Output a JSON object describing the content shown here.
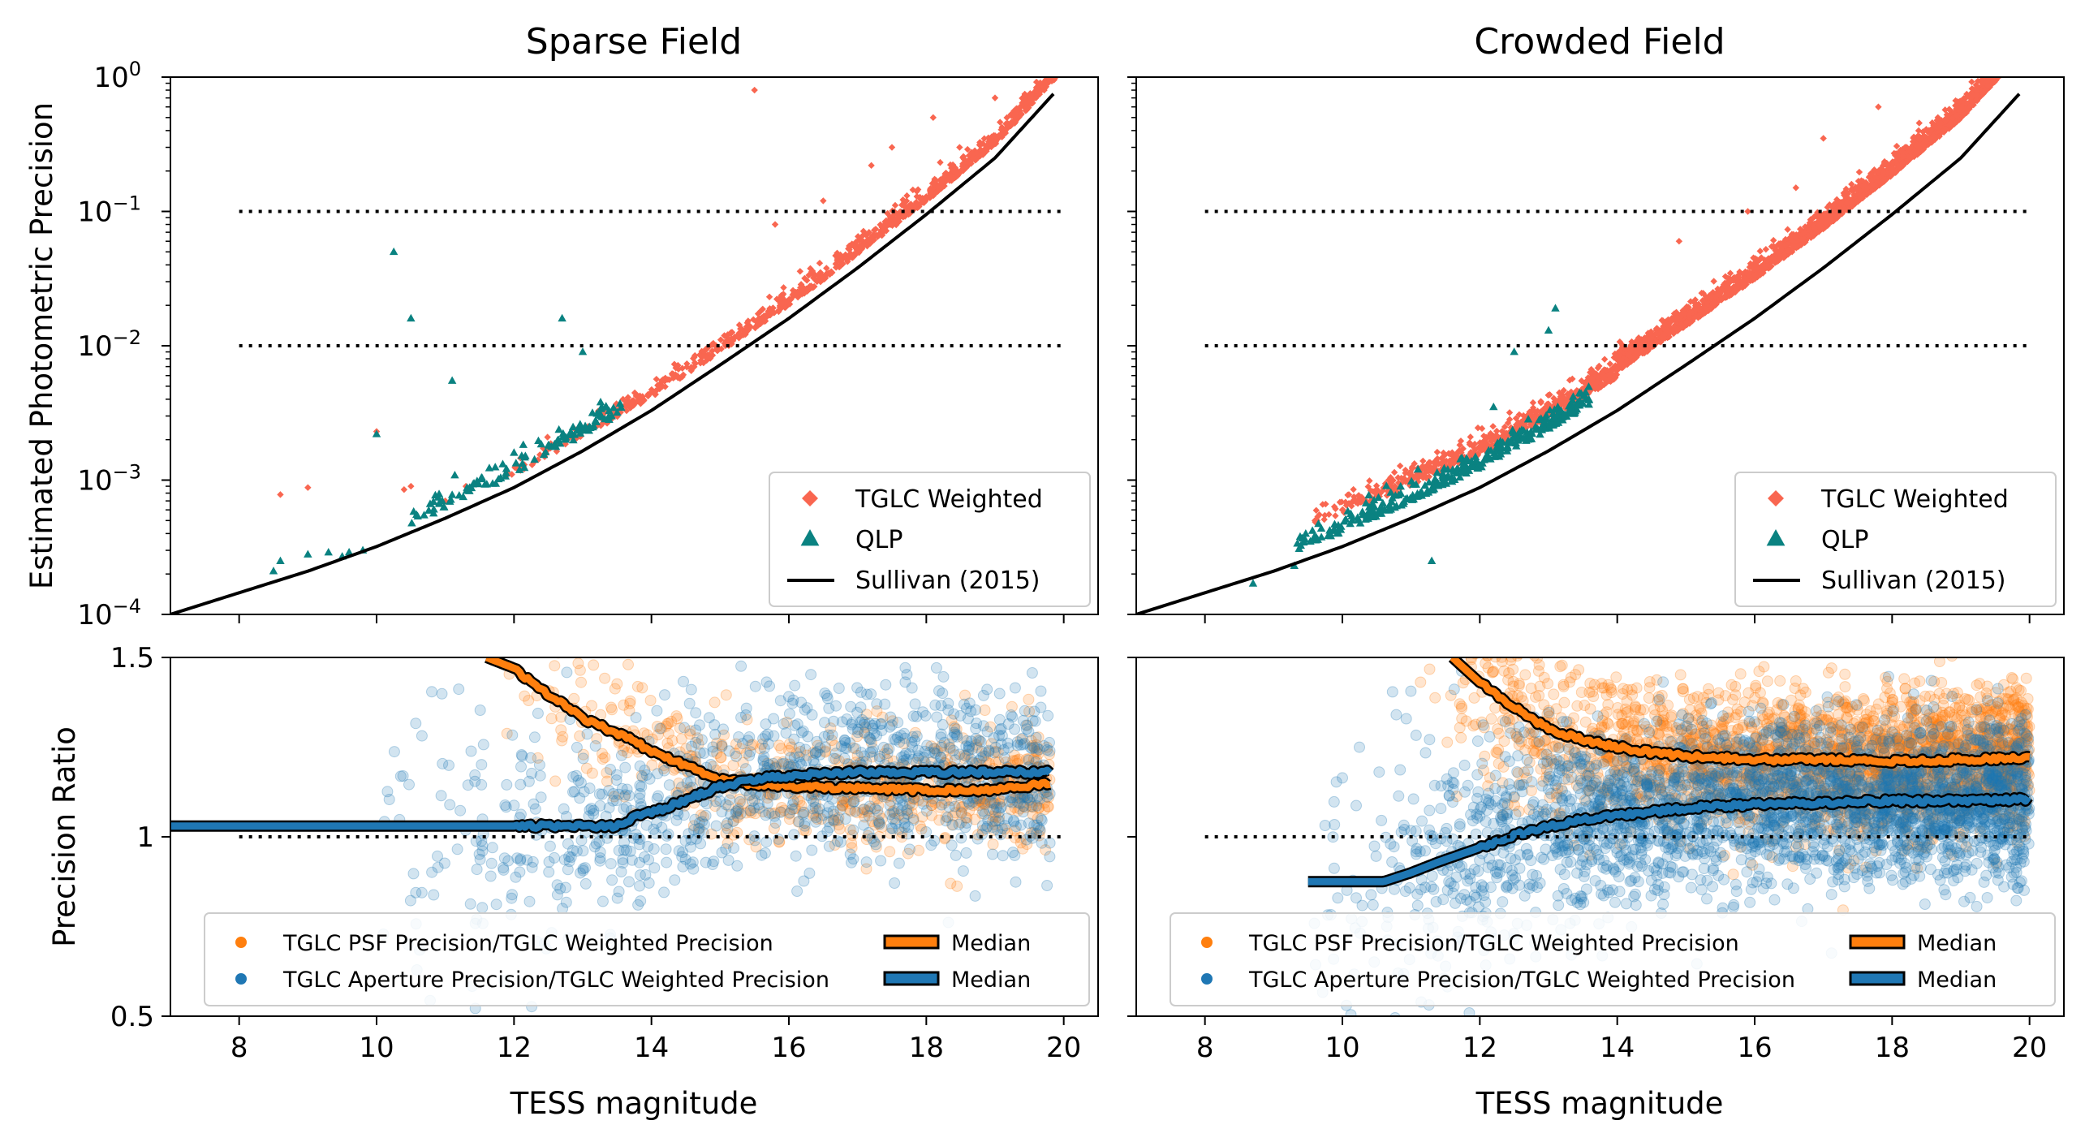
{
  "colors": {
    "tglc_weighted": "#f96650",
    "qlp": "#0a8281",
    "sullivan": "#000000",
    "psf_ratio": "#ff7f0e",
    "aperture_ratio": "#1f77b4",
    "median_edge": "#000000"
  },
  "chart_data": [
    {
      "id": "sparse_top",
      "type": "scatter",
      "title": "Sparse Field",
      "xlabel": "",
      "ylabel": "Estimated Photometric Precision",
      "xlim": [
        7,
        20.5
      ],
      "ylim": [
        0.0001,
        1
      ],
      "yscale": "log",
      "yticks": [
        {
          "value": 1,
          "label": "10",
          "exp": "0"
        },
        {
          "value": 0.1,
          "label": "10",
          "exp": "−1"
        },
        {
          "value": 0.01,
          "label": "10",
          "exp": "−2"
        },
        {
          "value": 0.001,
          "label": "10",
          "exp": "−3"
        },
        {
          "value": 0.0001,
          "label": "10",
          "exp": "−4"
        }
      ],
      "hlines": [
        {
          "y": 0.1,
          "x": [
            8,
            20
          ]
        },
        {
          "y": 0.01,
          "x": [
            8,
            20
          ]
        }
      ],
      "legend": {
        "location": "lower-right",
        "entries": [
          {
            "marker": "diamond",
            "label": "TGLC Weighted"
          },
          {
            "marker": "triangle",
            "label": "QLP"
          },
          {
            "marker": "line",
            "label": "Sullivan (2015)"
          }
        ]
      },
      "series": [
        {
          "name": "Sullivan (2015)",
          "kind": "line",
          "points": [
            [
              7,
              0.0001
            ],
            [
              8,
              0.000145
            ],
            [
              9,
              0.00021
            ],
            [
              10,
              0.00032
            ],
            [
              11,
              0.00052
            ],
            [
              12,
              0.00088
            ],
            [
              13,
              0.00165
            ],
            [
              14,
              0.0033
            ],
            [
              15,
              0.0072
            ],
            [
              16,
              0.016
            ],
            [
              17,
              0.038
            ],
            [
              18,
              0.095
            ],
            [
              19,
              0.25
            ],
            [
              19.9,
              0.8
            ]
          ]
        },
        {
          "name": "TGLC Weighted",
          "kind": "scatter",
          "range": [
            11.5,
            19.9
          ],
          "count": 900,
          "spread": 1.25,
          "outliers": [
            [
              8.6,
              0.00078
            ],
            [
              9.0,
              0.00088
            ],
            [
              10.0,
              0.0023
            ],
            [
              10.4,
              0.00085
            ],
            [
              10.5,
              0.0009
            ],
            [
              11.0,
              0.0007
            ],
            [
              11.3,
              0.0009
            ],
            [
              15.8,
              0.08
            ],
            [
              16.5,
              0.12
            ],
            [
              17.5,
              0.3
            ],
            [
              17.2,
              0.22
            ],
            [
              18.1,
              0.5
            ],
            [
              19.0,
              0.7
            ],
            [
              15.5,
              0.8
            ],
            [
              18.5,
              0.2
            ]
          ]
        },
        {
          "name": "QLP",
          "kind": "scatter",
          "range": [
            10.3,
            13.6
          ],
          "count": 120,
          "spread": 1.15,
          "outliers": [
            [
              8.5,
              0.00021
            ],
            [
              8.6,
              0.00025
            ],
            [
              9.0,
              0.00028
            ],
            [
              9.3,
              0.00029
            ],
            [
              9.5,
              0.00027
            ],
            [
              9.6,
              0.00029
            ],
            [
              9.8,
              0.0003
            ],
            [
              10.0,
              0.0022
            ],
            [
              10.25,
              0.05
            ],
            [
              10.5,
              0.016
            ],
            [
              11.1,
              0.0055
            ],
            [
              12.7,
              0.016
            ],
            [
              13.0,
              0.009
            ],
            [
              12.0,
              0.0016
            ]
          ]
        }
      ]
    },
    {
      "id": "crowded_top",
      "type": "scatter",
      "title": "Crowded Field",
      "xlabel": "",
      "ylabel": "",
      "xlim": [
        7,
        20.5
      ],
      "ylim": [
        0.0001,
        1
      ],
      "yscale": "log",
      "hlines": [
        {
          "y": 0.1,
          "x": [
            8,
            20
          ]
        },
        {
          "y": 0.01,
          "x": [
            8,
            20
          ]
        }
      ],
      "legend": {
        "location": "lower-right",
        "entries": [
          {
            "marker": "diamond",
            "label": "TGLC Weighted"
          },
          {
            "marker": "triangle",
            "label": "QLP"
          },
          {
            "marker": "line",
            "label": "Sullivan (2015)"
          }
        ]
      },
      "series": [
        {
          "name": "Sullivan (2015)",
          "kind": "line",
          "points": [
            [
              7,
              0.0001
            ],
            [
              8,
              0.000145
            ],
            [
              9,
              0.00021
            ],
            [
              10,
              0.00032
            ],
            [
              11,
              0.00052
            ],
            [
              12,
              0.00088
            ],
            [
              13,
              0.00165
            ],
            [
              14,
              0.0033
            ],
            [
              15,
              0.0072
            ],
            [
              16,
              0.016
            ],
            [
              17,
              0.038
            ],
            [
              18,
              0.095
            ],
            [
              19,
              0.25
            ],
            [
              19.9,
              0.8
            ]
          ]
        },
        {
          "name": "TGLC Weighted",
          "kind": "scatter",
          "range": [
            9.5,
            20.0
          ],
          "count": 2600,
          "spread": 1.7,
          "outliers": [
            [
              15.9,
              0.1
            ],
            [
              16.6,
              0.15
            ],
            [
              17.0,
              0.35
            ],
            [
              17.8,
              0.6
            ],
            [
              9.6,
              0.0005
            ],
            [
              10.0,
              0.0006
            ],
            [
              14.9,
              0.06
            ]
          ]
        },
        {
          "name": "QLP",
          "kind": "scatter",
          "range": [
            9.3,
            13.6
          ],
          "count": 340,
          "spread": 1.25,
          "outliers": [
            [
              8.7,
              0.00017
            ],
            [
              9.3,
              0.00023
            ],
            [
              11.1,
              0.0012
            ],
            [
              12.2,
              0.0035
            ],
            [
              12.5,
              0.009
            ],
            [
              13.0,
              0.013
            ],
            [
              13.1,
              0.019
            ],
            [
              11.3,
              0.00025
            ]
          ]
        }
      ]
    },
    {
      "id": "sparse_bottom",
      "type": "scatter",
      "title": "",
      "xlabel": "TESS magnitude",
      "ylabel": "Precision Ratio",
      "xlim": [
        7,
        20.5
      ],
      "ylim": [
        0.5,
        1.5
      ],
      "yscale": "linear",
      "xticks": [
        8,
        10,
        12,
        14,
        16,
        18,
        20
      ],
      "yticks": [
        {
          "value": 1.5,
          "label": "1.5"
        },
        {
          "value": 1,
          "label": "1"
        },
        {
          "value": 0.5,
          "label": "0.5"
        }
      ],
      "hlines": [
        {
          "y": 1.0,
          "x": [
            8,
            20
          ]
        }
      ],
      "legend": {
        "location": "lower",
        "entries": [
          {
            "marker": "dot-orange",
            "label": "TGLC PSF Precision/TGLC Weighted Precision"
          },
          {
            "marker": "dot-blue",
            "label": "TGLC Aperture Precision/TGLC Weighted Precision"
          },
          {
            "marker": "band-orange",
            "label": "Median"
          },
          {
            "marker": "band-blue",
            "label": "Median"
          }
        ]
      },
      "series": [
        {
          "name": "TGLC PSF Precision/TGLC Weighted Precision",
          "kind": "scatter",
          "range": [
            11.5,
            19.8
          ],
          "count": 700
        },
        {
          "name": "TGLC Aperture Precision/TGLC Weighted Precision",
          "kind": "scatter",
          "range": [
            10.0,
            19.8
          ],
          "count": 1100
        },
        {
          "name": "Median (PSF)",
          "kind": "median",
          "points": [
            [
              11.6,
              1.5
            ],
            [
              12.0,
              1.47
            ],
            [
              12.4,
              1.41
            ],
            [
              13.0,
              1.33
            ],
            [
              13.6,
              1.28
            ],
            [
              14.0,
              1.24
            ],
            [
              14.6,
              1.19
            ],
            [
              15.0,
              1.16
            ],
            [
              15.5,
              1.145
            ],
            [
              16.0,
              1.14
            ],
            [
              17.0,
              1.135
            ],
            [
              18.0,
              1.13
            ],
            [
              19.0,
              1.13
            ],
            [
              19.8,
              1.15
            ]
          ]
        },
        {
          "name": "Median (Aperture)",
          "kind": "median",
          "points": [
            [
              7,
              1.03
            ],
            [
              13.5,
              1.03
            ],
            [
              13.8,
              1.06
            ],
            [
              14.2,
              1.08
            ],
            [
              14.6,
              1.11
            ],
            [
              15.0,
              1.14
            ],
            [
              15.5,
              1.16
            ],
            [
              16.0,
              1.17
            ],
            [
              17.0,
              1.18
            ],
            [
              18.0,
              1.18
            ],
            [
              19.8,
              1.18
            ]
          ]
        }
      ]
    },
    {
      "id": "crowded_bottom",
      "type": "scatter",
      "title": "",
      "xlabel": "TESS magnitude",
      "ylabel": "",
      "xlim": [
        7,
        20.5
      ],
      "ylim": [
        0.5,
        1.5
      ],
      "yscale": "linear",
      "xticks": [
        8,
        10,
        12,
        14,
        16,
        18,
        20
      ],
      "hlines": [
        {
          "y": 1.0,
          "x": [
            8,
            20
          ]
        }
      ],
      "legend": {
        "location": "lower",
        "entries": [
          {
            "marker": "dot-orange",
            "label": "TGLC PSF Precision/TGLC Weighted Precision"
          },
          {
            "marker": "dot-blue",
            "label": "TGLC Aperture Precision/TGLC Weighted Precision"
          },
          {
            "marker": "band-orange",
            "label": "Median"
          },
          {
            "marker": "band-blue",
            "label": "Median"
          }
        ]
      },
      "series": [
        {
          "name": "TGLC PSF Precision/TGLC Weighted Precision",
          "kind": "scatter",
          "range": [
            11.0,
            20.0
          ],
          "count": 2400
        },
        {
          "name": "TGLC Aperture Precision/TGLC Weighted Precision",
          "kind": "scatter",
          "range": [
            9.5,
            20.0
          ],
          "count": 2800
        },
        {
          "name": "Median (PSF)",
          "kind": "median",
          "points": [
            [
              11.6,
              1.5
            ],
            [
              12.0,
              1.43
            ],
            [
              12.5,
              1.36
            ],
            [
              13.0,
              1.3
            ],
            [
              13.5,
              1.27
            ],
            [
              14.0,
              1.25
            ],
            [
              14.5,
              1.235
            ],
            [
              15.0,
              1.225
            ],
            [
              16.0,
              1.215
            ],
            [
              17.0,
              1.215
            ],
            [
              18.0,
              1.21
            ],
            [
              19.0,
              1.215
            ],
            [
              20.0,
              1.22
            ]
          ]
        },
        {
          "name": "Median (Aperture)",
          "kind": "median",
          "points": [
            [
              9.5,
              0.875
            ],
            [
              10.6,
              0.875
            ],
            [
              11.0,
              0.9
            ],
            [
              11.4,
              0.93
            ],
            [
              12.0,
              0.97
            ],
            [
              12.6,
              1.01
            ],
            [
              13.0,
              1.03
            ],
            [
              13.6,
              1.05
            ],
            [
              14.0,
              1.06
            ],
            [
              15.0,
              1.08
            ],
            [
              16.0,
              1.09
            ],
            [
              17.0,
              1.095
            ],
            [
              18.0,
              1.1
            ],
            [
              19.0,
              1.1
            ],
            [
              20.0,
              1.105
            ]
          ]
        }
      ]
    }
  ]
}
